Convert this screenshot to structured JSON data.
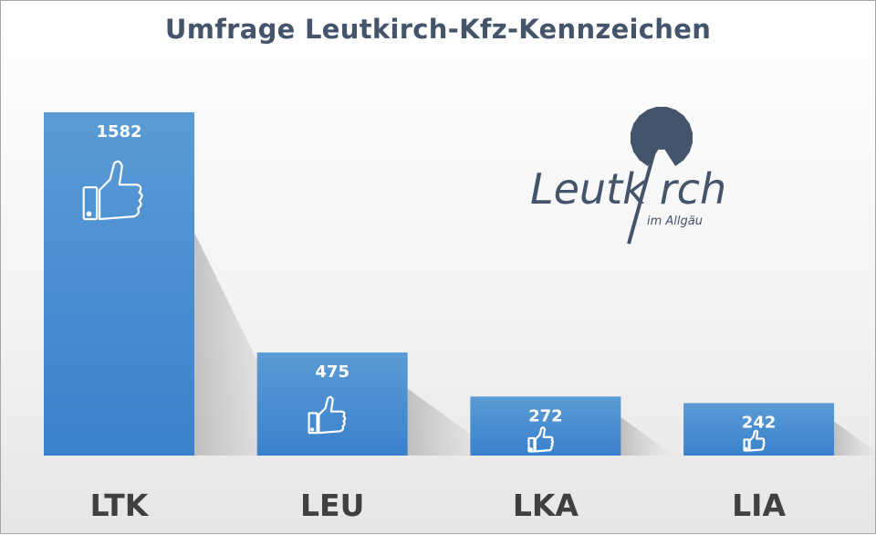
{
  "chart_data": {
    "type": "bar",
    "title": "Umfrage Leutkirch-Kfz-Kennzeichen",
    "categories": [
      "LTK",
      "LEU",
      "LKA",
      "LIA"
    ],
    "values": [
      1582,
      475,
      272,
      242
    ],
    "xlabel": "",
    "ylabel": "",
    "ylim": [
      0,
      1582
    ],
    "grid": false,
    "legend": "none",
    "data_labels": true,
    "bar_icon": "thumbs-up-icon",
    "colors": {
      "bar_top": "#5b9bd5",
      "bar_bottom": "#3a82cc",
      "title": "#44546a",
      "label": "#404040",
      "logo": "#44546a"
    }
  },
  "logo": {
    "name": "Leutkirch",
    "tagline": "im Allgäu"
  }
}
